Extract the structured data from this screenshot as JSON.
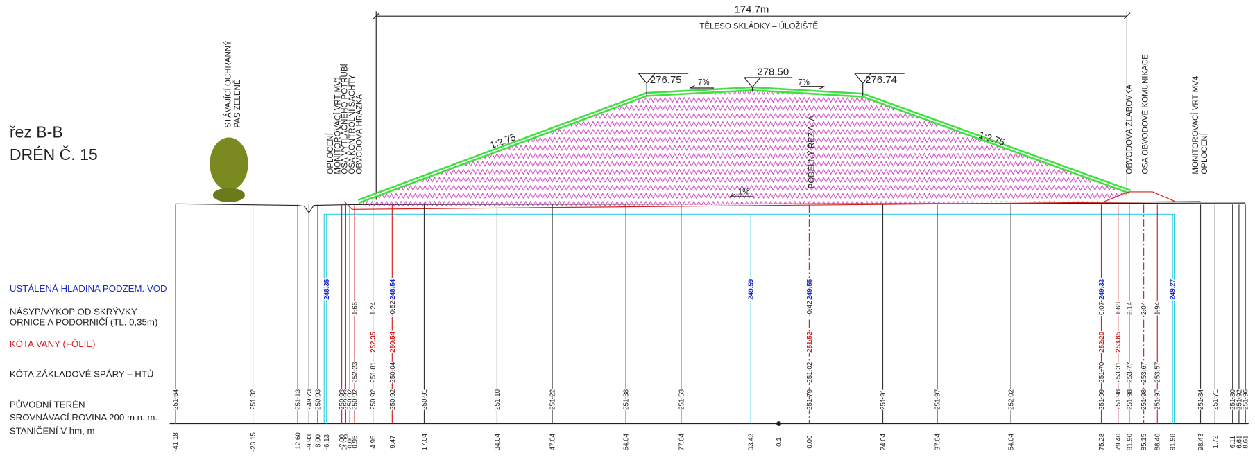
{
  "header": {
    "section": "řez B-B",
    "title": "DRÉN Č. 15"
  },
  "dimension": {
    "length": "174,7m",
    "label": "TĚLESO SKLÁDKY – ÚLOŽIŠTĚ"
  },
  "row_labels": [
    "USTÁLENÁ HLADINA PODZEM. VOD",
    "NÁSYP/VÝKOP OD SKRÝVKY",
    "ORNICE A PODORNIČÍ (TL. 0,35m)",
    "KÓTA VANY (FÓLIE)",
    "KÓTA ZÁKLADOVÉ SPÁRY – HTÚ",
    "PŮVODNÍ TERÉN",
    "SROVNÁVACÍ ROVINA 200 m n. m.",
    "STANIČENÍ V hm, m"
  ],
  "callouts": {
    "greenery": [
      "STÁVAJÍCÍ OCHRANNÝ",
      "PAS ZELENĚ"
    ],
    "left": [
      "OPLOCENÍ",
      "MONITOROVACÍ VRT MV1",
      "OSA VÝTLAČNÉHO POTRUBÍ",
      "OSA KONTROLNÍ ŠACHTY",
      "OBVODOVÁ HRÁZKA"
    ],
    "axis": "PODÉLNÝ ŘEZ A–A",
    "right": [
      "OBVODOVÁ ŽLABOVKA",
      "OSA OBVODOVÉ KOMUNIKACE"
    ],
    "far_right": [
      "MONITOROVACÍ VRT MV4",
      "OPLOCENÍ"
    ]
  },
  "levels": [
    "276.75",
    "278.50",
    "276.74"
  ],
  "slopes": [
    "7%",
    "7%",
    "1%",
    "1:2.75",
    "1:2.75"
  ],
  "columns": [
    {
      "station": "-41.18",
      "terrain": "251.64"
    },
    {
      "station": "-23.15",
      "terrain": "251.32"
    },
    {
      "station": "-12.60",
      "terrain": "251.13"
    },
    {
      "station": "-9.93",
      "terrain": "249.73"
    },
    {
      "station": "-8.00",
      "terrain": "250.93"
    },
    {
      "station": "-6.13",
      "water": "248.35"
    },
    {
      "station": "-2.00",
      "terrain": "250.93"
    },
    {
      "station": "-1.00",
      "terrain": "250.93"
    },
    {
      "station": "0.00",
      "terrain": "250.92"
    },
    {
      "station": "0.95",
      "terrain": "250.92",
      "base": "252.23",
      "fill": "1.66"
    },
    {
      "station": "4.95",
      "terrain": "250.92",
      "base": "251.81",
      "vany": "252.35",
      "fill": "1.24"
    },
    {
      "station": "9.47",
      "terrain": "250.92",
      "base": "250.04",
      "vany": "250.54",
      "fill": "-0.52",
      "water": "248.54"
    },
    {
      "station": "17.04",
      "terrain": "250.91"
    },
    {
      "station": "34.04",
      "terrain": "251.10"
    },
    {
      "station": "47.04",
      "terrain": "251.22"
    },
    {
      "station": "64.04",
      "terrain": "251.38"
    },
    {
      "station": "77.04",
      "terrain": "251.53"
    },
    {
      "station": "93.42",
      "water": "249.59"
    },
    {
      "station": "0.1"
    },
    {
      "station": "0.00",
      "terrain": "251.79",
      "base": "251.02",
      "vany": "251.52",
      "fill": "-0.42",
      "water": "249.55"
    },
    {
      "station": "24.04",
      "terrain": "251.91"
    },
    {
      "station": "37.04",
      "terrain": "251.97"
    },
    {
      "station": "54.04",
      "terrain": "252.02"
    },
    {
      "station": "75.28",
      "terrain": "251.99",
      "base": "251.70",
      "vany": "252.20",
      "fill": "0.07",
      "water": "249.33"
    },
    {
      "station": "79.40",
      "terrain": "251.98",
      "base": "253.31",
      "vany": "253.85",
      "fill": "1.68"
    },
    {
      "station": "81.90",
      "terrain": "251.98",
      "base": "253.77",
      "fill": "2.14"
    },
    {
      "station": "85.15",
      "terrain": "251.98",
      "base": "253.67",
      "fill": "2.04"
    },
    {
      "station": "88.40",
      "terrain": "251.97",
      "base": "253.57",
      "fill": "1.94"
    },
    {
      "station": "91.98",
      "water": "249.27"
    },
    {
      "station": "98.43",
      "terrain": "251.84"
    },
    {
      "station": "1.72",
      "terrain": "251.71"
    },
    {
      "station": "6.11",
      "terrain": "251.80"
    },
    {
      "station": "6.61",
      "terrain": "251.92"
    },
    {
      "station": "8.61",
      "terrain": "251.96"
    }
  ]
}
